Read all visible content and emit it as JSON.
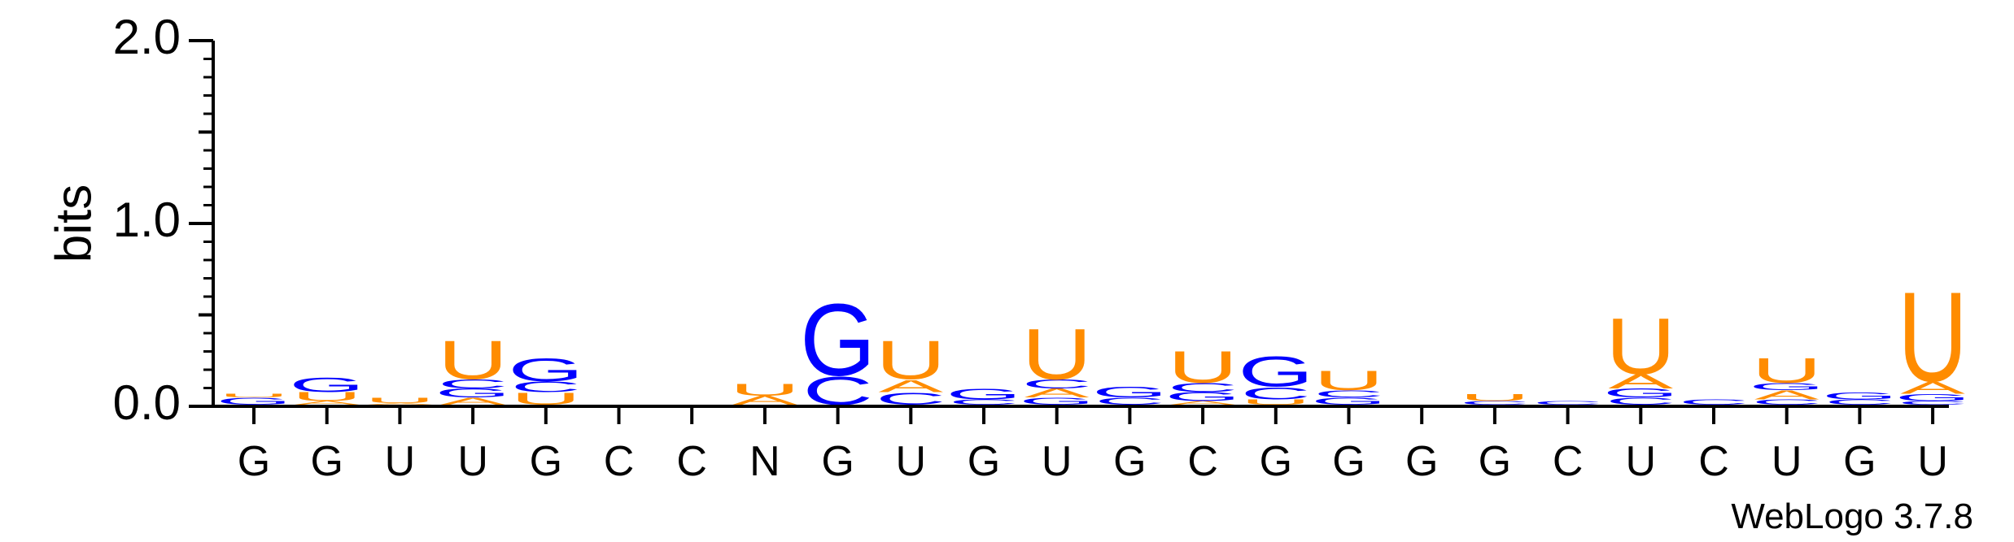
{
  "chart_data": {
    "type": "sequence-logo",
    "ylabel": "bits",
    "ylim": [
      0,
      2.0
    ],
    "yticks": [
      "0.0",
      "1.0",
      "2.0"
    ],
    "footer": "WebLogo 3.7.8",
    "colors": {
      "G": "#0000ff",
      "C": "#0000ff",
      "U": "#ff8c00",
      "A": "#ff8c00"
    },
    "positions": [
      {
        "label": "G",
        "stack": [
          {
            "base": "G",
            "height": 0.04
          },
          {
            "base": "U",
            "height": 0.02
          }
        ]
      },
      {
        "label": "G",
        "stack": [
          {
            "base": "A",
            "height": 0.02
          },
          {
            "base": "U",
            "height": 0.05
          },
          {
            "base": "G",
            "height": 0.08
          }
        ]
      },
      {
        "label": "U",
        "stack": [
          {
            "base": "A",
            "height": 0.01
          },
          {
            "base": "U",
            "height": 0.03
          }
        ]
      },
      {
        "label": "U",
        "stack": [
          {
            "base": "A",
            "height": 0.04
          },
          {
            "base": "G",
            "height": 0.05
          },
          {
            "base": "C",
            "height": 0.05
          },
          {
            "base": "U",
            "height": 0.22
          }
        ]
      },
      {
        "label": "G",
        "stack": [
          {
            "base": "U",
            "height": 0.07
          },
          {
            "base": "C",
            "height": 0.06
          },
          {
            "base": "G",
            "height": 0.13
          }
        ]
      },
      {
        "label": "C",
        "stack": []
      },
      {
        "label": "C",
        "stack": []
      },
      {
        "label": "N",
        "stack": [
          {
            "base": "A",
            "height": 0.05
          },
          {
            "base": "U",
            "height": 0.07
          }
        ]
      },
      {
        "label": "G",
        "stack": [
          {
            "base": "C",
            "height": 0.16
          },
          {
            "base": "G",
            "height": 0.41
          }
        ]
      },
      {
        "label": "U",
        "stack": [
          {
            "base": "C",
            "height": 0.07
          },
          {
            "base": "A",
            "height": 0.07
          },
          {
            "base": "U",
            "height": 0.22
          }
        ]
      },
      {
        "label": "G",
        "stack": [
          {
            "base": "C",
            "height": 0.03
          },
          {
            "base": "G",
            "height": 0.06
          }
        ]
      },
      {
        "label": "U",
        "stack": [
          {
            "base": "G",
            "height": 0.04
          },
          {
            "base": "A",
            "height": 0.05
          },
          {
            "base": "C",
            "height": 0.05
          },
          {
            "base": "U",
            "height": 0.29
          }
        ]
      },
      {
        "label": "G",
        "stack": [
          {
            "base": "C",
            "height": 0.04
          },
          {
            "base": "G",
            "height": 0.06
          }
        ]
      },
      {
        "label": "C",
        "stack": [
          {
            "base": "A",
            "height": 0.02
          },
          {
            "base": "G",
            "height": 0.05
          },
          {
            "base": "C",
            "height": 0.05
          },
          {
            "base": "U",
            "height": 0.18
          }
        ]
      },
      {
        "label": "G",
        "stack": [
          {
            "base": "U",
            "height": 0.03
          },
          {
            "base": "C",
            "height": 0.07
          },
          {
            "base": "G",
            "height": 0.17
          }
        ]
      },
      {
        "label": "G",
        "stack": [
          {
            "base": "G",
            "height": 0.04
          },
          {
            "base": "C",
            "height": 0.04
          },
          {
            "base": "U",
            "height": 0.11
          }
        ]
      },
      {
        "label": "G",
        "stack": []
      },
      {
        "label": "G",
        "stack": [
          {
            "base": "C",
            "height": 0.02
          },
          {
            "base": "U",
            "height": 0.04
          }
        ]
      },
      {
        "label": "C",
        "stack": [
          {
            "base": "C",
            "height": 0.02
          }
        ]
      },
      {
        "label": "U",
        "stack": [
          {
            "base": "C",
            "height": 0.04
          },
          {
            "base": "G",
            "height": 0.05
          },
          {
            "base": "A",
            "height": 0.08
          },
          {
            "base": "U",
            "height": 0.32
          }
        ]
      },
      {
        "label": "C",
        "stack": [
          {
            "base": "C",
            "height": 0.03
          }
        ]
      },
      {
        "label": "U",
        "stack": [
          {
            "base": "C",
            "height": 0.03
          },
          {
            "base": "A",
            "height": 0.05
          },
          {
            "base": "G",
            "height": 0.04
          },
          {
            "base": "U",
            "height": 0.14
          }
        ]
      },
      {
        "label": "G",
        "stack": [
          {
            "base": "C",
            "height": 0.03
          },
          {
            "base": "G",
            "height": 0.04
          }
        ]
      },
      {
        "label": "U",
        "stack": [
          {
            "base": "C",
            "height": 0.02
          },
          {
            "base": "G",
            "height": 0.04
          },
          {
            "base": "A",
            "height": 0.07
          },
          {
            "base": "U",
            "height": 0.51
          }
        ]
      }
    ]
  }
}
